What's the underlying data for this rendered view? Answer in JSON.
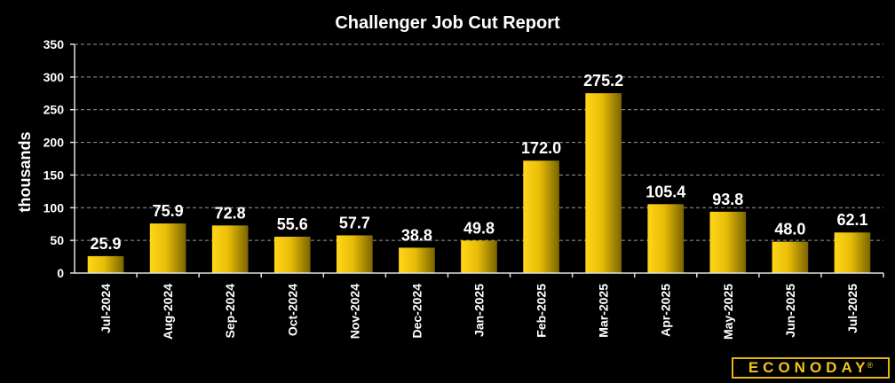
{
  "chart_data": {
    "type": "bar",
    "title": "Challenger Job Cut Report",
    "xlabel": "",
    "ylabel": "thousands",
    "ylim": [
      0,
      350
    ],
    "yticks": [
      0,
      50,
      100,
      150,
      200,
      250,
      300,
      350
    ],
    "categories": [
      "Jul-2024",
      "Aug-2024",
      "Sep-2024",
      "Oct-2024",
      "Nov-2024",
      "Dec-2024",
      "Jan-2025",
      "Feb-2025",
      "Mar-2025",
      "Apr-2025",
      "May-2025",
      "Jun-2025",
      "Jul-2025"
    ],
    "values": [
      25.9,
      75.9,
      72.8,
      55.6,
      57.7,
      38.8,
      49.8,
      172.0,
      275.2,
      105.4,
      93.8,
      48.0,
      62.1
    ],
    "value_labels": [
      "25.9",
      "75.9",
      "72.8",
      "55.6",
      "57.7",
      "38.8",
      "49.8",
      "172.0",
      "275.2",
      "105.4",
      "93.8",
      "48.0",
      "62.1"
    ],
    "grid": true,
    "bar_color": "#f2c70a",
    "bar_color_dark": "#7a6400"
  },
  "brand": {
    "logo_text": "ECONODAY",
    "logo_mark": "®",
    "color": "#f0c419"
  }
}
